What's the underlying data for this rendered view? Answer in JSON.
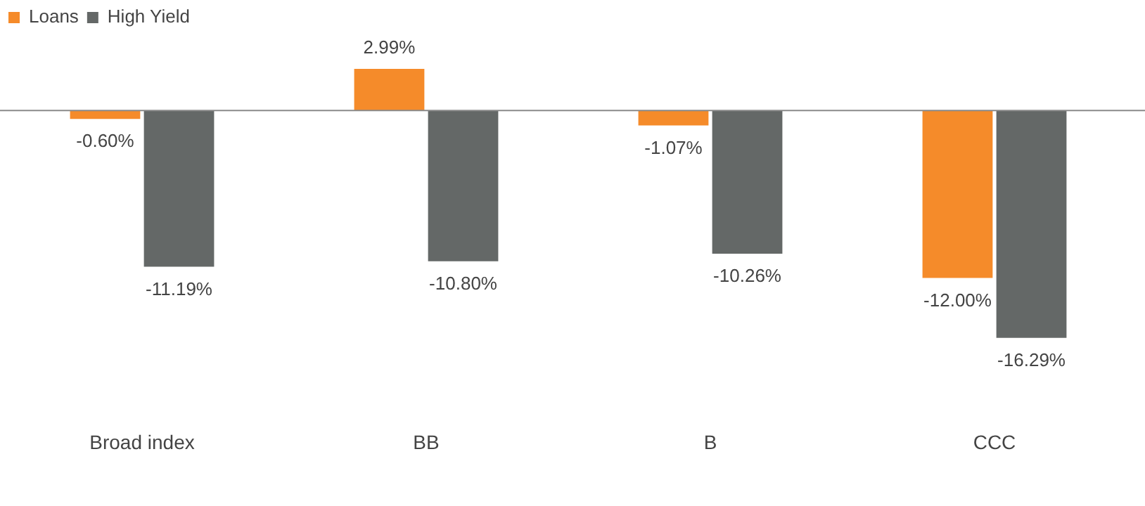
{
  "chart_data": {
    "type": "bar",
    "categories": [
      "Broad index",
      "BB",
      "B",
      "CCC"
    ],
    "series": [
      {
        "name": "Loans",
        "color": "#f58b2a",
        "values": [
          -0.6,
          2.99,
          -1.07,
          -12.0
        ],
        "value_labels": [
          "-0.60%",
          "2.99%",
          "-1.07%",
          "-12.00%"
        ]
      },
      {
        "name": "High Yield",
        "color": "#646867",
        "values": [
          -11.19,
          -10.8,
          -10.26,
          -16.29
        ],
        "value_labels": [
          "-11.19%",
          "-10.80%",
          "-10.26%",
          "-16.29%"
        ]
      }
    ],
    "legend": "top left",
    "grid": false
  }
}
